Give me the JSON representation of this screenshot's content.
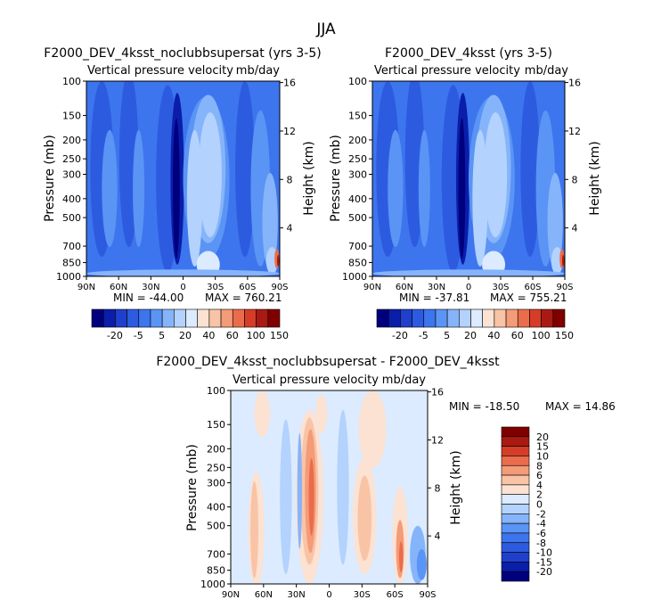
{
  "figure": {
    "title": "JJA"
  },
  "colors": {
    "scale_abs": [
      "#00007f",
      "#0a1eaa",
      "#1f3fcc",
      "#2d5be0",
      "#3d75ee",
      "#5a94f5",
      "#86b4fa",
      "#b3d2fd",
      "#dcebff",
      "#fbe2d2",
      "#f9c3a6",
      "#f49b77",
      "#ea6c4c",
      "#d53d28",
      "#a91b12",
      "#800000"
    ],
    "scale_diff": [
      "#00007f",
      "#0a1eaa",
      "#1f3fcc",
      "#2d5be0",
      "#3d75ee",
      "#5a94f5",
      "#86b4fa",
      "#b3d2fd",
      "#dcebff",
      "#fbe2d2",
      "#f9c3a6",
      "#f49b77",
      "#ea6c4c",
      "#d53d28",
      "#a91b12",
      "#800000"
    ]
  },
  "chart_data": [
    {
      "type": "heatmap",
      "title": "F2000_DEV_4ksst_noclubbsupersat (yrs 3-5)",
      "subtitle_left": "Vertical pressure velocity",
      "subtitle_right": "mb/day",
      "xlabel": "",
      "ylabel": "Pressure (mb)",
      "y2label": "Height (km)",
      "xticks": [
        "90N",
        "60N",
        "30N",
        "0",
        "30S",
        "60S",
        "90S"
      ],
      "yticks": [
        100,
        150,
        200,
        250,
        300,
        400,
        500,
        700,
        850,
        1000
      ],
      "y2ticks": [
        4,
        8,
        12,
        16
      ],
      "min_label": "MIN = -44.00",
      "max_label": "MAX = 760.21",
      "colorbar_labels": [
        "-20",
        "-5",
        "5",
        "20",
        "40",
        "60",
        "100",
        "150"
      ],
      "colorbar_levels": [
        -30,
        -20,
        -10,
        -5,
        -2,
        5,
        10,
        20,
        30,
        40,
        50,
        60,
        80,
        100,
        150
      ],
      "scale": "scale_abs"
    },
    {
      "type": "heatmap",
      "title": "F2000_DEV_4ksst (yrs 3-5)",
      "subtitle_left": "Vertical pressure velocity",
      "subtitle_right": "mb/day",
      "xlabel": "",
      "ylabel": "Pressure (mb)",
      "y2label": "Height (km)",
      "xticks": [
        "90N",
        "60N",
        "30N",
        "0",
        "30S",
        "60S",
        "90S"
      ],
      "yticks": [
        100,
        150,
        200,
        250,
        300,
        400,
        500,
        700,
        850,
        1000
      ],
      "y2ticks": [
        4,
        8,
        12,
        16
      ],
      "min_label": "MIN = -37.81",
      "max_label": "MAX = 755.21",
      "colorbar_labels": [
        "-20",
        "-5",
        "5",
        "20",
        "40",
        "60",
        "100",
        "150"
      ],
      "colorbar_levels": [
        -30,
        -20,
        -10,
        -5,
        -2,
        5,
        10,
        20,
        30,
        40,
        50,
        60,
        80,
        100,
        150
      ],
      "scale": "scale_abs"
    },
    {
      "type": "heatmap",
      "title": "F2000_DEV_4ksst_noclubbsupersat - F2000_DEV_4ksst",
      "subtitle_left": "Vertical pressure velocity",
      "subtitle_right": "mb/day",
      "xlabel": "",
      "ylabel": "Pressure (mb)",
      "y2label": "Height (km)",
      "xticks": [
        "90N",
        "60N",
        "30N",
        "0",
        "30S",
        "60S",
        "90S"
      ],
      "yticks": [
        100,
        150,
        200,
        250,
        300,
        400,
        500,
        700,
        850,
        1000
      ],
      "y2ticks": [
        4,
        8,
        12,
        16
      ],
      "min_label": "MIN = -18.50",
      "max_label": "MAX =  14.86",
      "colorbar_labels": [
        "20",
        "15",
        "10",
        "8",
        "6",
        "4",
        "2",
        "0",
        "-2",
        "-4",
        "-6",
        "-8",
        "-10",
        "-15",
        "-20"
      ],
      "scale": "scale_diff"
    }
  ]
}
